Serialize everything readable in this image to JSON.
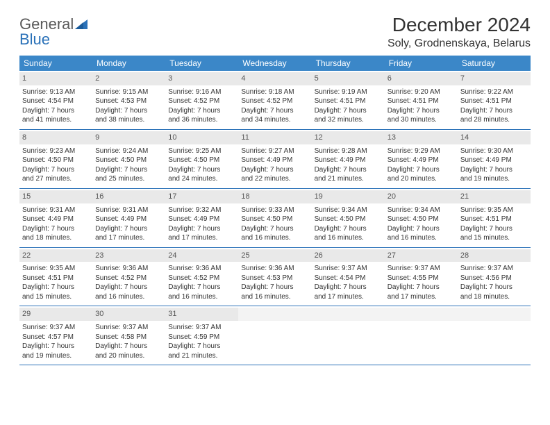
{
  "logo": {
    "text_top": "General",
    "text_bottom": "Blue"
  },
  "title": "December 2024",
  "location": "Soly, Grodnenskaya, Belarus",
  "colors": {
    "header_bg": "#3b87c8",
    "header_text": "#ffffff",
    "row_border": "#2a71b8",
    "daynum_bg": "#e9e9e9",
    "logo_gray": "#5a5a5a",
    "logo_blue": "#2a71b8"
  },
  "day_names": [
    "Sunday",
    "Monday",
    "Tuesday",
    "Wednesday",
    "Thursday",
    "Friday",
    "Saturday"
  ],
  "weeks": [
    [
      {
        "n": "1",
        "sr": "Sunrise: 9:13 AM",
        "ss": "Sunset: 4:54 PM",
        "d1": "Daylight: 7 hours",
        "d2": "and 41 minutes."
      },
      {
        "n": "2",
        "sr": "Sunrise: 9:15 AM",
        "ss": "Sunset: 4:53 PM",
        "d1": "Daylight: 7 hours",
        "d2": "and 38 minutes."
      },
      {
        "n": "3",
        "sr": "Sunrise: 9:16 AM",
        "ss": "Sunset: 4:52 PM",
        "d1": "Daylight: 7 hours",
        "d2": "and 36 minutes."
      },
      {
        "n": "4",
        "sr": "Sunrise: 9:18 AM",
        "ss": "Sunset: 4:52 PM",
        "d1": "Daylight: 7 hours",
        "d2": "and 34 minutes."
      },
      {
        "n": "5",
        "sr": "Sunrise: 9:19 AM",
        "ss": "Sunset: 4:51 PM",
        "d1": "Daylight: 7 hours",
        "d2": "and 32 minutes."
      },
      {
        "n": "6",
        "sr": "Sunrise: 9:20 AM",
        "ss": "Sunset: 4:51 PM",
        "d1": "Daylight: 7 hours",
        "d2": "and 30 minutes."
      },
      {
        "n": "7",
        "sr": "Sunrise: 9:22 AM",
        "ss": "Sunset: 4:51 PM",
        "d1": "Daylight: 7 hours",
        "d2": "and 28 minutes."
      }
    ],
    [
      {
        "n": "8",
        "sr": "Sunrise: 9:23 AM",
        "ss": "Sunset: 4:50 PM",
        "d1": "Daylight: 7 hours",
        "d2": "and 27 minutes."
      },
      {
        "n": "9",
        "sr": "Sunrise: 9:24 AM",
        "ss": "Sunset: 4:50 PM",
        "d1": "Daylight: 7 hours",
        "d2": "and 25 minutes."
      },
      {
        "n": "10",
        "sr": "Sunrise: 9:25 AM",
        "ss": "Sunset: 4:50 PM",
        "d1": "Daylight: 7 hours",
        "d2": "and 24 minutes."
      },
      {
        "n": "11",
        "sr": "Sunrise: 9:27 AM",
        "ss": "Sunset: 4:49 PM",
        "d1": "Daylight: 7 hours",
        "d2": "and 22 minutes."
      },
      {
        "n": "12",
        "sr": "Sunrise: 9:28 AM",
        "ss": "Sunset: 4:49 PM",
        "d1": "Daylight: 7 hours",
        "d2": "and 21 minutes."
      },
      {
        "n": "13",
        "sr": "Sunrise: 9:29 AM",
        "ss": "Sunset: 4:49 PM",
        "d1": "Daylight: 7 hours",
        "d2": "and 20 minutes."
      },
      {
        "n": "14",
        "sr": "Sunrise: 9:30 AM",
        "ss": "Sunset: 4:49 PM",
        "d1": "Daylight: 7 hours",
        "d2": "and 19 minutes."
      }
    ],
    [
      {
        "n": "15",
        "sr": "Sunrise: 9:31 AM",
        "ss": "Sunset: 4:49 PM",
        "d1": "Daylight: 7 hours",
        "d2": "and 18 minutes."
      },
      {
        "n": "16",
        "sr": "Sunrise: 9:31 AM",
        "ss": "Sunset: 4:49 PM",
        "d1": "Daylight: 7 hours",
        "d2": "and 17 minutes."
      },
      {
        "n": "17",
        "sr": "Sunrise: 9:32 AM",
        "ss": "Sunset: 4:49 PM",
        "d1": "Daylight: 7 hours",
        "d2": "and 17 minutes."
      },
      {
        "n": "18",
        "sr": "Sunrise: 9:33 AM",
        "ss": "Sunset: 4:50 PM",
        "d1": "Daylight: 7 hours",
        "d2": "and 16 minutes."
      },
      {
        "n": "19",
        "sr": "Sunrise: 9:34 AM",
        "ss": "Sunset: 4:50 PM",
        "d1": "Daylight: 7 hours",
        "d2": "and 16 minutes."
      },
      {
        "n": "20",
        "sr": "Sunrise: 9:34 AM",
        "ss": "Sunset: 4:50 PM",
        "d1": "Daylight: 7 hours",
        "d2": "and 16 minutes."
      },
      {
        "n": "21",
        "sr": "Sunrise: 9:35 AM",
        "ss": "Sunset: 4:51 PM",
        "d1": "Daylight: 7 hours",
        "d2": "and 15 minutes."
      }
    ],
    [
      {
        "n": "22",
        "sr": "Sunrise: 9:35 AM",
        "ss": "Sunset: 4:51 PM",
        "d1": "Daylight: 7 hours",
        "d2": "and 15 minutes."
      },
      {
        "n": "23",
        "sr": "Sunrise: 9:36 AM",
        "ss": "Sunset: 4:52 PM",
        "d1": "Daylight: 7 hours",
        "d2": "and 16 minutes."
      },
      {
        "n": "24",
        "sr": "Sunrise: 9:36 AM",
        "ss": "Sunset: 4:52 PM",
        "d1": "Daylight: 7 hours",
        "d2": "and 16 minutes."
      },
      {
        "n": "25",
        "sr": "Sunrise: 9:36 AM",
        "ss": "Sunset: 4:53 PM",
        "d1": "Daylight: 7 hours",
        "d2": "and 16 minutes."
      },
      {
        "n": "26",
        "sr": "Sunrise: 9:37 AM",
        "ss": "Sunset: 4:54 PM",
        "d1": "Daylight: 7 hours",
        "d2": "and 17 minutes."
      },
      {
        "n": "27",
        "sr": "Sunrise: 9:37 AM",
        "ss": "Sunset: 4:55 PM",
        "d1": "Daylight: 7 hours",
        "d2": "and 17 minutes."
      },
      {
        "n": "28",
        "sr": "Sunrise: 9:37 AM",
        "ss": "Sunset: 4:56 PM",
        "d1": "Daylight: 7 hours",
        "d2": "and 18 minutes."
      }
    ],
    [
      {
        "n": "29",
        "sr": "Sunrise: 9:37 AM",
        "ss": "Sunset: 4:57 PM",
        "d1": "Daylight: 7 hours",
        "d2": "and 19 minutes."
      },
      {
        "n": "30",
        "sr": "Sunrise: 9:37 AM",
        "ss": "Sunset: 4:58 PM",
        "d1": "Daylight: 7 hours",
        "d2": "and 20 minutes."
      },
      {
        "n": "31",
        "sr": "Sunrise: 9:37 AM",
        "ss": "Sunset: 4:59 PM",
        "d1": "Daylight: 7 hours",
        "d2": "and 21 minutes."
      },
      {
        "empty": true
      },
      {
        "empty": true
      },
      {
        "empty": true
      },
      {
        "empty": true
      }
    ]
  ]
}
